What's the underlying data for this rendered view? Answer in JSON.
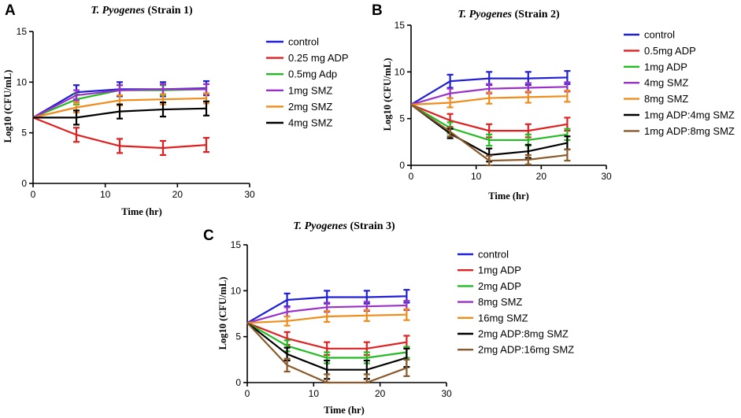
{
  "chart_data": [
    {
      "type": "line",
      "panel": "A",
      "title_italic": "T. Pyogenes",
      "title_rest": " (Strain 1)",
      "xlabel": "Time (hr)",
      "ylabel": "Log10 (CFU/mL)",
      "xlim": [
        0,
        30
      ],
      "ylim": [
        0,
        15
      ],
      "xticks": [
        0,
        10,
        20,
        30
      ],
      "yticks": [
        0,
        5,
        10,
        15
      ],
      "x": [
        0,
        6,
        12,
        18,
        24
      ],
      "series": [
        {
          "name": "control",
          "color": "#1f1fd6",
          "values": [
            6.5,
            9.0,
            9.3,
            9.3,
            9.4
          ],
          "errors": [
            0,
            0.7,
            0.7,
            0.7,
            0.7
          ]
        },
        {
          "name": "0.25 mg ADP",
          "color": "#e02020",
          "values": [
            6.5,
            4.8,
            3.7,
            3.5,
            3.8
          ],
          "errors": [
            0,
            0.7,
            0.7,
            0.7,
            0.7
          ]
        },
        {
          "name": "0.5mg Adp",
          "color": "#22bb22",
          "values": [
            6.5,
            8.3,
            9.2,
            9.2,
            9.3
          ],
          "errors": [
            0,
            0.5,
            0.5,
            0.5,
            0.5
          ]
        },
        {
          "name": "1mg SMZ",
          "color": "#9b30c8",
          "values": [
            6.5,
            8.7,
            9.2,
            9.3,
            9.3
          ],
          "errors": [
            0,
            0.5,
            0.5,
            0.5,
            0.5
          ]
        },
        {
          "name": "2mg SMZ",
          "color": "#f08c1a",
          "values": [
            6.5,
            7.5,
            8.2,
            8.3,
            8.4
          ],
          "errors": [
            0,
            0.5,
            0.5,
            0.5,
            0.5
          ]
        },
        {
          "name": "4mg SMZ",
          "color": "#000000",
          "values": [
            6.5,
            6.5,
            7.1,
            7.3,
            7.4
          ],
          "errors": [
            0,
            0.7,
            0.7,
            0.7,
            0.7
          ]
        }
      ]
    },
    {
      "type": "line",
      "panel": "B",
      "title_italic": "T. Pyogenes",
      "title_rest": " (Strain 2)",
      "xlabel": "Time (hr)",
      "ylabel": "Log10 (CFU/mL)",
      "xlim": [
        0,
        30
      ],
      "ylim": [
        0,
        15
      ],
      "xticks": [
        0,
        10,
        20,
        30
      ],
      "yticks": [
        0,
        5,
        10,
        15
      ],
      "x": [
        0,
        6,
        12,
        18,
        24
      ],
      "series": [
        {
          "name": "control",
          "color": "#1f1fd6",
          "values": [
            6.5,
            9.0,
            9.3,
            9.3,
            9.4
          ],
          "errors": [
            0,
            0.7,
            0.7,
            0.7,
            0.7
          ]
        },
        {
          "name": "0.5mg ADP",
          "color": "#e02020",
          "values": [
            6.5,
            4.8,
            3.7,
            3.7,
            4.4
          ],
          "errors": [
            0,
            0.7,
            0.7,
            0.7,
            0.7
          ]
        },
        {
          "name": "1mg ADP",
          "color": "#22bb22",
          "values": [
            6.5,
            4.0,
            2.7,
            2.7,
            3.3
          ],
          "errors": [
            0,
            0.6,
            0.6,
            0.6,
            0.6
          ]
        },
        {
          "name": "4mg SMZ",
          "color": "#9b30c8",
          "values": [
            6.5,
            7.7,
            8.2,
            8.3,
            8.4
          ],
          "errors": [
            0,
            0.5,
            0.5,
            0.5,
            0.5
          ]
        },
        {
          "name": "8mg SMZ",
          "color": "#f08c1a",
          "values": [
            6.5,
            6.7,
            7.2,
            7.3,
            7.4
          ],
          "errors": [
            0,
            0.5,
            0.6,
            0.6,
            0.6
          ]
        },
        {
          "name": "1mg ADP:4mg SMZ",
          "color": "#000000",
          "values": [
            6.5,
            3.4,
            1.1,
            1.5,
            2.4
          ],
          "errors": [
            0,
            0.5,
            0.7,
            0.7,
            0.7
          ]
        },
        {
          "name": "1mg ADP:8mg SMZ",
          "color": "#8b5a2b",
          "values": [
            6.5,
            3.6,
            0.5,
            0.6,
            1.1
          ],
          "errors": [
            0,
            0.5,
            0.5,
            0.5,
            0.6
          ]
        }
      ]
    },
    {
      "type": "line",
      "panel": "C",
      "title_italic": "T. Pyogenes",
      "title_rest": " (Strain 3)",
      "xlabel": "Time (hr)",
      "ylabel": "Log10 (CFU/mL)",
      "xlim": [
        0,
        30
      ],
      "ylim": [
        0,
        15
      ],
      "xticks": [
        0,
        10,
        20,
        30
      ],
      "yticks": [
        0,
        5,
        10,
        15
      ],
      "x": [
        0,
        6,
        12,
        18,
        24
      ],
      "series": [
        {
          "name": "control",
          "color": "#1f1fd6",
          "values": [
            6.5,
            9.0,
            9.3,
            9.3,
            9.4
          ],
          "errors": [
            0,
            0.7,
            0.7,
            0.7,
            0.7
          ]
        },
        {
          "name": "1mg ADP",
          "color": "#e02020",
          "values": [
            6.5,
            4.8,
            3.7,
            3.7,
            4.4
          ],
          "errors": [
            0,
            0.7,
            0.7,
            0.7,
            0.7
          ]
        },
        {
          "name": "2mg ADP",
          "color": "#22bb22",
          "values": [
            6.5,
            4.0,
            2.7,
            2.7,
            3.3
          ],
          "errors": [
            0,
            0.6,
            0.6,
            0.6,
            0.6
          ]
        },
        {
          "name": "8mg SMZ",
          "color": "#9b30c8",
          "values": [
            6.5,
            7.7,
            8.2,
            8.3,
            8.4
          ],
          "errors": [
            0,
            0.5,
            0.5,
            0.5,
            0.5
          ]
        },
        {
          "name": "16mg SMZ",
          "color": "#f08c1a",
          "values": [
            6.5,
            6.7,
            7.2,
            7.3,
            7.4
          ],
          "errors": [
            0,
            0.5,
            0.6,
            0.6,
            0.6
          ]
        },
        {
          "name": "2mg ADP:8mg SMZ",
          "color": "#000000",
          "values": [
            6.5,
            3.1,
            1.4,
            1.4,
            2.7
          ],
          "errors": [
            0,
            0.7,
            1.0,
            1.0,
            1.0
          ]
        },
        {
          "name": "2mg ADP:16mg SMZ",
          "color": "#8b5a2b",
          "values": [
            6.5,
            1.9,
            0.0,
            0.0,
            1.6
          ],
          "errors": [
            0,
            0.7,
            0.9,
            0.9,
            0.9
          ]
        }
      ]
    }
  ]
}
